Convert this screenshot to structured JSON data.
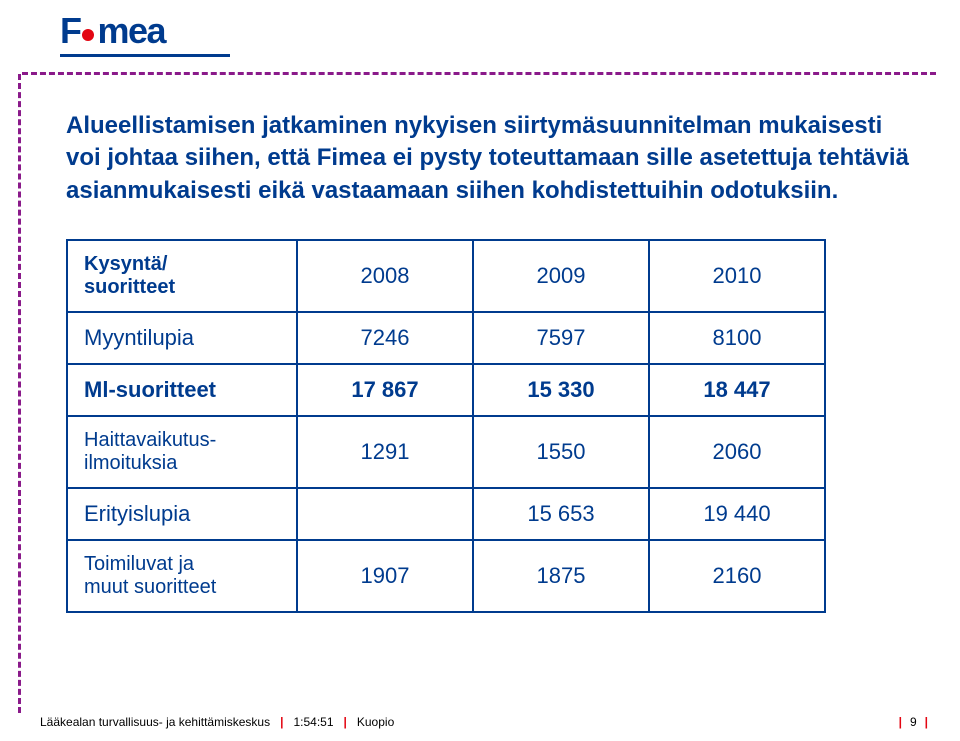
{
  "colors": {
    "brand_purple": "#8a1a8a",
    "brand_blue": "#003b8e",
    "accent_red": "#e30613",
    "text_blue": "#003b8e",
    "table_border": "#003b8e",
    "body_black": "#000000"
  },
  "logo": {
    "text_before_dot": "F",
    "text_after_dot": "mea"
  },
  "heading": "Alueellistamisen jatkaminen nykyisen siirtymäsuunnitelman mukaisesti voi johtaa siihen, että Fimea ei pysty toteuttamaan sille asetettuja tehtäviä asianmukaisesti eikä vastaamaan siihen kohdistettuihin odotuksiin.",
  "table": {
    "header": {
      "label_line1": "Kysyntä/",
      "label_line2": "suoritteet",
      "cols": [
        "2008",
        "2009",
        "2010"
      ]
    },
    "rows": [
      {
        "label": "Myyntilupia",
        "values": [
          "7246",
          "7597",
          "8100"
        ],
        "bold": false,
        "multiline": false
      },
      {
        "label": "Ml-suoritteet",
        "values": [
          "17 867",
          "15 330",
          "18 447"
        ],
        "bold": true,
        "multiline": false
      },
      {
        "label_line1": "Haittavaikutus-",
        "label_line2": "ilmoituksia",
        "values": [
          "1291",
          "1550",
          "2060"
        ],
        "bold": false,
        "multiline": true
      },
      {
        "label": "Erityislupia",
        "values": [
          "",
          "15 653",
          "19 440"
        ],
        "bold": false,
        "multiline": false
      },
      {
        "label_line1": "Toimiluvat ja",
        "label_line2": "muut suoritteet",
        "values": [
          "1907",
          "1875",
          "2160"
        ],
        "bold": false,
        "multiline": true
      }
    ]
  },
  "footer": {
    "org": "Lääkealan turvallisuus- ja kehittämiskeskus",
    "time": "1:54:51",
    "place": "Kuopio",
    "page": "9"
  }
}
